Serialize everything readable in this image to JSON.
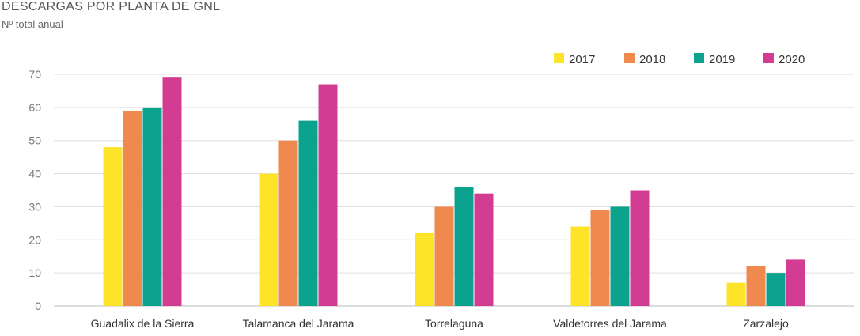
{
  "chart_data": {
    "type": "bar",
    "title": "DESCARGAS POR PLANTA DE GNL",
    "subtitle": "Nº total anual",
    "categories": [
      "Guadalix de la Sierra",
      "Talamanca del Jarama",
      "Torrelaguna",
      "Valdetorres del Jarama",
      "Zarzalejo"
    ],
    "series": [
      {
        "name": "2017",
        "color": "#fde428",
        "values": [
          48,
          40,
          22,
          24,
          7
        ]
      },
      {
        "name": "2018",
        "color": "#ef894d",
        "values": [
          59,
          50,
          30,
          29,
          12
        ]
      },
      {
        "name": "2019",
        "color": "#0ba38d",
        "values": [
          60,
          56,
          36,
          30,
          10
        ]
      },
      {
        "name": "2020",
        "color": "#d23c92",
        "values": [
          69,
          67,
          34,
          35,
          14
        ]
      }
    ],
    "ylim": [
      0,
      70
    ],
    "yticks": [
      0,
      10,
      20,
      30,
      40,
      50,
      60,
      70
    ],
    "xlabel": "",
    "ylabel": "",
    "grid": true,
    "legend": "top-right"
  }
}
